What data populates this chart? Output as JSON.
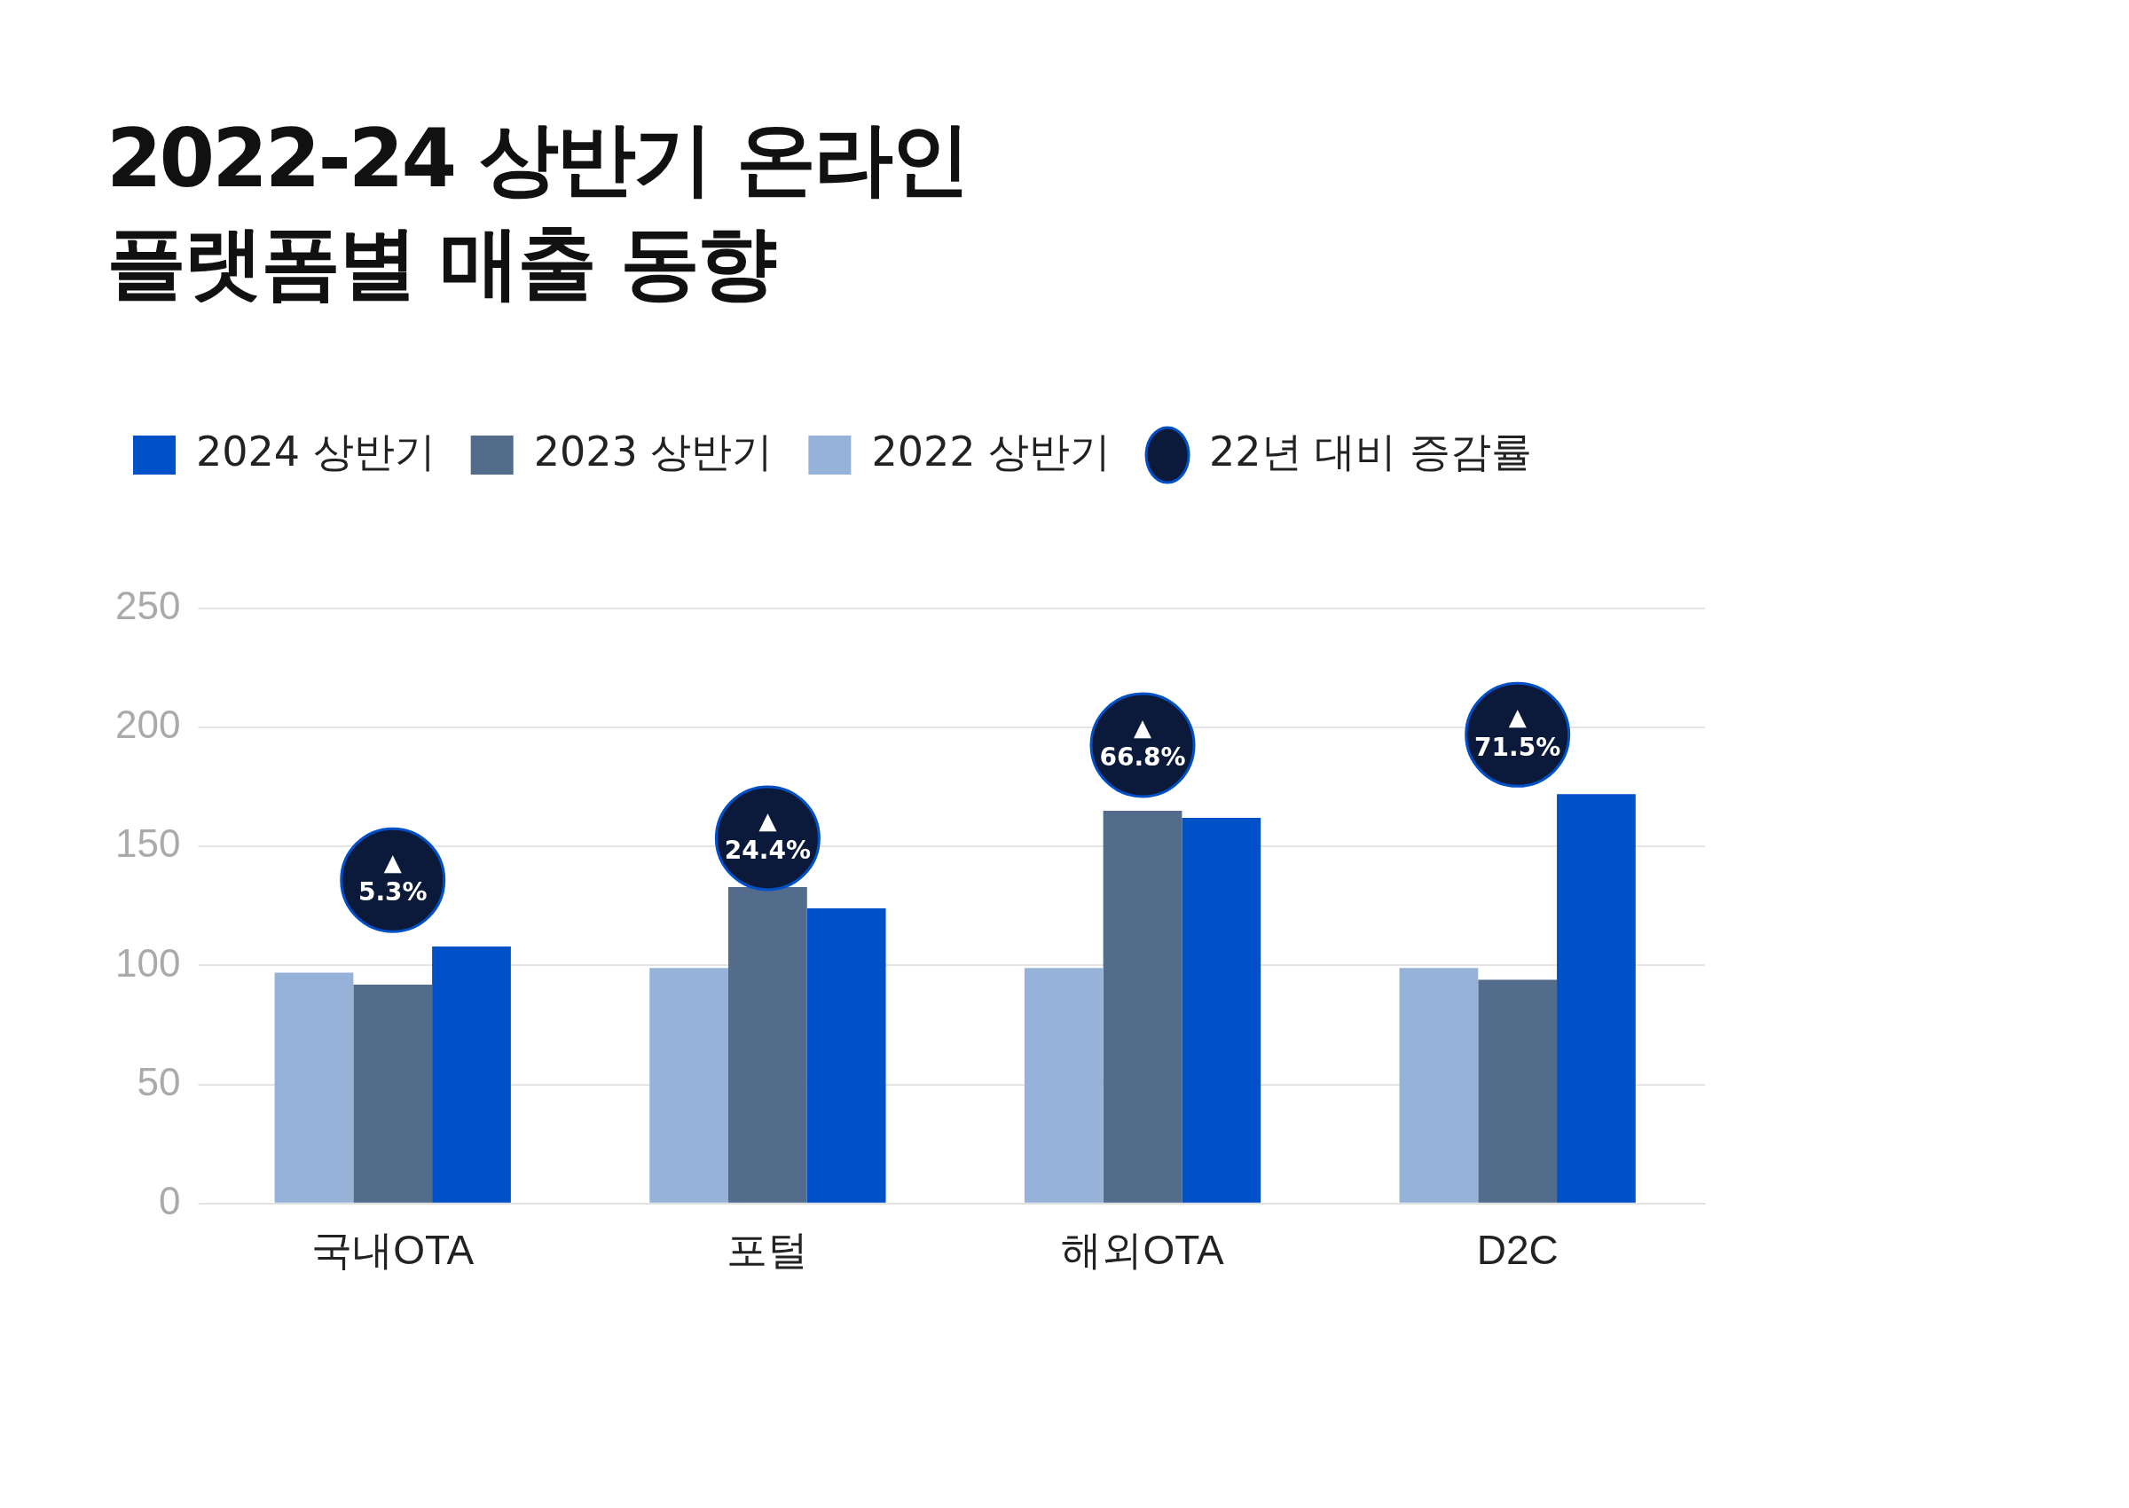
{
  "chart_data": {
    "type": "bar",
    "title": "2022-24 상반기 온라인\n플랫폼별 매출 동향",
    "categories": [
      "국내OTA",
      "포털",
      "해외OTA",
      "D2C"
    ],
    "series": [
      {
        "name": "22년 대비 증감률",
        "type": "scatter",
        "axis": "y2",
        "color": "#0b1a3a",
        "values": [
          5.3,
          24.4,
          66.8,
          71.5
        ],
        "value_labels": [
          "▲ 5.3%",
          "▲ 24.4%",
          "▲ 66.8%",
          "▲ 71.5%"
        ]
      },
      {
        "name": "2022 상반기",
        "color": "#97b2d9",
        "values": [
          97,
          99,
          99,
          99
        ]
      },
      {
        "name": "2023 상반기",
        "color": "#546c8c",
        "values": [
          92,
          133,
          165,
          94
        ]
      },
      {
        "name": "2024 상반기",
        "color": "#0050c8",
        "values": [
          108,
          124,
          162,
          172
        ]
      }
    ],
    "y2lim": [
      -142,
      129
    ],
    "tick_labels": "xy",
    "ylim": [
      0,
      250
    ],
    "yticks": [
      0,
      50,
      100,
      150,
      200,
      250
    ],
    "grid": "y",
    "legend": "top left",
    "marker": "circle"
  }
}
